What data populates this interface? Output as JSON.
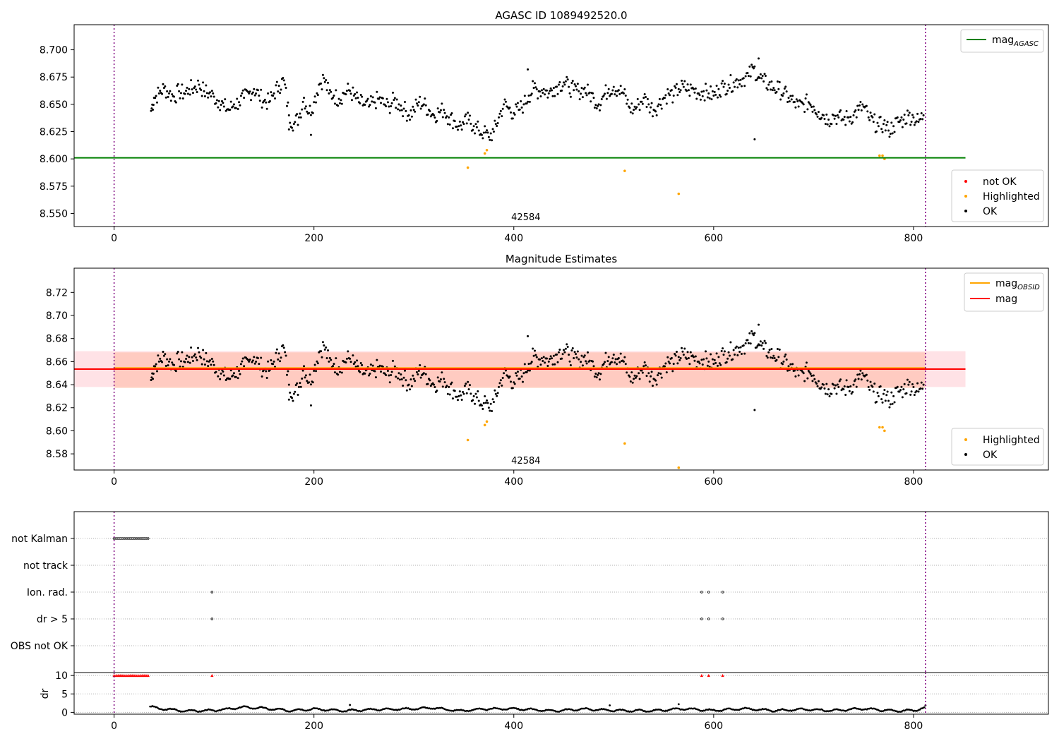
{
  "chart_data": [
    {
      "type": "scatter",
      "title": "AGASC ID 1089492520.0",
      "x_ticks": [
        0,
        200,
        400,
        600,
        800
      ],
      "y_ticks": [
        8.55,
        8.575,
        8.6,
        8.625,
        8.65,
        8.675,
        8.7
      ],
      "y_tick_labels": [
        "8.550",
        "8.575",
        "8.600",
        "8.625",
        "8.650",
        "8.675",
        "8.700"
      ],
      "xlim": [
        -40,
        935
      ],
      "ylim": [
        8.538,
        8.723
      ],
      "vlines": [
        0,
        812
      ],
      "obsid_label": {
        "text": "42584",
        "x": 405
      },
      "hlines": [
        {
          "name": "mag_AGASC",
          "y": 8.601,
          "x_range": [
            -40,
            852
          ],
          "color": "#008000"
        }
      ],
      "legend_top": {
        "position": "top-right",
        "entries": [
          {
            "base": "mag",
            "sub": "AGASC",
            "color": "#008000"
          }
        ]
      },
      "legend_bottom": {
        "position": "lower-right",
        "entries": [
          {
            "label": "not OK",
            "color": "#ff0000"
          },
          {
            "label": "Highlighted",
            "color": "#ffa500"
          },
          {
            "label": "OK",
            "color": "#000000"
          }
        ]
      },
      "series": [
        {
          "name": "OK",
          "color": "#000000",
          "points": [
            [
              37,
              8.644
            ],
            [
              40,
              8.656
            ],
            [
              45,
              8.66
            ],
            [
              50,
              8.665
            ],
            [
              55,
              8.66
            ],
            [
              60,
              8.657
            ],
            [
              65,
              8.662
            ],
            [
              70,
              8.66
            ],
            [
              75,
              8.664
            ],
            [
              80,
              8.665
            ],
            [
              85,
              8.668
            ],
            [
              90,
              8.662
            ],
            [
              95,
              8.66
            ],
            [
              100,
              8.657
            ],
            [
              105,
              8.653
            ],
            [
              110,
              8.648
            ],
            [
              115,
              8.645
            ],
            [
              120,
              8.65
            ],
            [
              125,
              8.652
            ],
            [
              130,
              8.656
            ],
            [
              135,
              8.66
            ],
            [
              140,
              8.664
            ],
            [
              145,
              8.658
            ],
            [
              150,
              8.653
            ],
            [
              155,
              8.652
            ],
            [
              160,
              8.66
            ],
            [
              165,
              8.667
            ],
            [
              170,
              8.672
            ],
            [
              175,
              8.64
            ],
            [
              180,
              8.632
            ],
            [
              185,
              8.638
            ],
            [
              190,
              8.656
            ],
            [
              195,
              8.642
            ],
            [
              200,
              8.652
            ],
            [
              205,
              8.668
            ],
            [
              210,
              8.674
            ],
            [
              215,
              8.66
            ],
            [
              220,
              8.658
            ],
            [
              225,
              8.655
            ],
            [
              230,
              8.66
            ],
            [
              235,
              8.663
            ],
            [
              240,
              8.658
            ],
            [
              245,
              8.652
            ],
            [
              250,
              8.65
            ],
            [
              255,
              8.648
            ],
            [
              260,
              8.652
            ],
            [
              265,
              8.655
            ],
            [
              270,
              8.65
            ],
            [
              275,
              8.648
            ],
            [
              280,
              8.654
            ],
            [
              285,
              8.65
            ],
            [
              290,
              8.646
            ],
            [
              295,
              8.64
            ],
            [
              300,
              8.645
            ],
            [
              305,
              8.652
            ],
            [
              310,
              8.65
            ],
            [
              315,
              8.645
            ],
            [
              320,
              8.64
            ],
            [
              325,
              8.643
            ],
            [
              330,
              8.645
            ],
            [
              335,
              8.638
            ],
            [
              340,
              8.635
            ],
            [
              345,
              8.63
            ],
            [
              350,
              8.632
            ],
            [
              355,
              8.636
            ],
            [
              360,
              8.63
            ],
            [
              365,
              8.626
            ],
            [
              370,
              8.624
            ],
            [
              375,
              8.62
            ],
            [
              380,
              8.625
            ],
            [
              385,
              8.638
            ],
            [
              390,
              8.65
            ],
            [
              395,
              8.646
            ],
            [
              400,
              8.642
            ],
            [
              405,
              8.645
            ],
            [
              410,
              8.65
            ],
            [
              415,
              8.658
            ],
            [
              420,
              8.665
            ],
            [
              425,
              8.662
            ],
            [
              430,
              8.664
            ],
            [
              435,
              8.66
            ],
            [
              440,
              8.665
            ],
            [
              445,
              8.668
            ],
            [
              450,
              8.67
            ],
            [
              455,
              8.666
            ],
            [
              460,
              8.663
            ],
            [
              465,
              8.662
            ],
            [
              470,
              8.664
            ],
            [
              475,
              8.66
            ],
            [
              480,
              8.656
            ],
            [
              485,
              8.65
            ],
            [
              490,
              8.658
            ],
            [
              495,
              8.664
            ],
            [
              500,
              8.666
            ],
            [
              505,
              8.663
            ],
            [
              510,
              8.66
            ],
            [
              515,
              8.648
            ],
            [
              520,
              8.645
            ],
            [
              525,
              8.65
            ],
            [
              530,
              8.656
            ],
            [
              535,
              8.65
            ],
            [
              540,
              8.645
            ],
            [
              545,
              8.65
            ],
            [
              550,
              8.656
            ],
            [
              555,
              8.66
            ],
            [
              560,
              8.658
            ],
            [
              565,
              8.664
            ],
            [
              570,
              8.666
            ],
            [
              575,
              8.663
            ],
            [
              580,
              8.664
            ],
            [
              585,
              8.66
            ],
            [
              590,
              8.662
            ],
            [
              595,
              8.66
            ],
            [
              600,
              8.658
            ],
            [
              605,
              8.664
            ],
            [
              610,
              8.666
            ],
            [
              615,
              8.668
            ],
            [
              620,
              8.67
            ],
            [
              625,
              8.672
            ],
            [
              630,
              8.674
            ],
            [
              635,
              8.676
            ],
            [
              640,
              8.683
            ],
            [
              645,
              8.675
            ],
            [
              650,
              8.671
            ],
            [
              655,
              8.668
            ],
            [
              660,
              8.665
            ],
            [
              665,
              8.664
            ],
            [
              670,
              8.66
            ],
            [
              675,
              8.656
            ],
            [
              680,
              8.652
            ],
            [
              685,
              8.648
            ],
            [
              690,
              8.65
            ],
            [
              695,
              8.652
            ],
            [
              700,
              8.648
            ],
            [
              705,
              8.643
            ],
            [
              710,
              8.64
            ],
            [
              715,
              8.636
            ],
            [
              720,
              8.64
            ],
            [
              725,
              8.638
            ],
            [
              730,
              8.636
            ],
            [
              735,
              8.638
            ],
            [
              740,
              8.64
            ],
            [
              745,
              8.645
            ],
            [
              750,
              8.648
            ],
            [
              755,
              8.638
            ],
            [
              760,
              8.634
            ],
            [
              765,
              8.63
            ],
            [
              770,
              8.632
            ],
            [
              775,
              8.626
            ],
            [
              780,
              8.63
            ],
            [
              785,
              8.634
            ],
            [
              790,
              8.636
            ],
            [
              795,
              8.64
            ],
            [
              800,
              8.638
            ],
            [
              805,
              8.634
            ],
            [
              810,
              8.64
            ],
            [
              641,
              8.618
            ],
            [
              175,
              8.627
            ],
            [
              197,
              8.622
            ],
            [
              645,
              8.692
            ],
            [
              414,
              8.682
            ]
          ]
        },
        {
          "name": "Highlighted",
          "color": "#ffa500",
          "points": [
            [
              354,
              8.592
            ],
            [
              371,
              8.605
            ],
            [
              373,
              8.608
            ],
            [
              511,
              8.589
            ],
            [
              565,
              8.568
            ],
            [
              766,
              8.603
            ],
            [
              769,
              8.603
            ],
            [
              771,
              8.6
            ]
          ]
        },
        {
          "name": "not OK",
          "color": "#ff0000",
          "points": []
        }
      ]
    },
    {
      "type": "scatter",
      "title": "Magnitude Estimates",
      "x_ticks": [
        0,
        200,
        400,
        600,
        800
      ],
      "y_ticks": [
        8.58,
        8.6,
        8.62,
        8.64,
        8.66,
        8.68,
        8.7,
        8.72
      ],
      "y_tick_labels": [
        "8.58",
        "8.60",
        "8.62",
        "8.64",
        "8.66",
        "8.68",
        "8.70",
        "8.72"
      ],
      "xlim": [
        -40,
        935
      ],
      "ylim": [
        8.566,
        8.741
      ],
      "vlines": [
        0,
        812
      ],
      "obsid_label": {
        "text": "42584",
        "x": 405
      },
      "hlines": [
        {
          "name": "mag_OBSID",
          "y": 8.6545,
          "x_range": [
            0,
            812
          ],
          "color": "#ffa500"
        },
        {
          "name": "mag",
          "y": 8.6535,
          "x_range": [
            -40,
            852
          ],
          "color": "#ff0000"
        }
      ],
      "bands": [
        {
          "y_range": [
            8.638,
            8.669
          ],
          "x_range": [
            -40,
            852
          ],
          "color": "#ffb6c1",
          "opacity": 0.4
        },
        {
          "y_range": [
            8.637,
            8.668
          ],
          "x_range": [
            0,
            812
          ],
          "color": "#ffa07a",
          "opacity": 0.35
        }
      ],
      "legend_top": {
        "position": "top-right",
        "entries": [
          {
            "base": "mag",
            "sub": "OBSID",
            "color": "#ffa500"
          },
          {
            "base": "mag",
            "sub": "",
            "color": "#ff0000"
          }
        ]
      },
      "legend_bottom": {
        "position": "lower-right",
        "entries": [
          {
            "label": "Highlighted",
            "color": "#ffa500"
          },
          {
            "label": "OK",
            "color": "#000000"
          }
        ]
      },
      "series": [
        {
          "name": "OK",
          "color": "#000000",
          "same_as_panel": 0
        },
        {
          "name": "Highlighted",
          "color": "#ffa500",
          "same_as_panel": 0
        }
      ]
    },
    {
      "type": "scatter",
      "title": "",
      "x_ticks": [
        0,
        200,
        400,
        600,
        800
      ],
      "xlim": [
        -40,
        935
      ],
      "vlines": [
        0,
        812
      ],
      "flag_rows": [
        "not Kalman",
        "not track",
        "Ion. rad.",
        "dr > 5",
        "OBS not OK"
      ],
      "flag_points": {
        "not Kalman": {
          "range": [
            0,
            34
          ],
          "step": 2
        },
        "not track": {
          "points": []
        },
        "Ion. rad.": {
          "points": [
            98,
            588,
            595,
            609
          ]
        },
        "dr > 5": {
          "points": [
            98,
            588,
            595,
            609
          ]
        },
        "OBS not OK": {
          "points": []
        }
      },
      "dr_ylabel": "dr",
      "dr_ticks": [
        0,
        5,
        10
      ],
      "dr_ylim": [
        -0.5,
        10.8
      ],
      "dr_capped_x": {
        "range": [
          0,
          34
        ],
        "step": 2,
        "extra": [
          98,
          588,
          595,
          609
        ]
      },
      "dr_profile": [
        [
          36,
          1.6
        ],
        [
          45,
          1.0
        ],
        [
          55,
          0.8
        ],
        [
          70,
          0.4
        ],
        [
          100,
          0.5
        ],
        [
          130,
          1.4
        ],
        [
          150,
          1.1
        ],
        [
          175,
          0.5
        ],
        [
          200,
          0.9
        ],
        [
          230,
          0.4
        ],
        [
          260,
          0.8
        ],
        [
          290,
          0.9
        ],
        [
          320,
          1.2
        ],
        [
          345,
          0.4
        ],
        [
          370,
          0.9
        ],
        [
          400,
          1.0
        ],
        [
          440,
          0.4
        ],
        [
          470,
          0.9
        ],
        [
          500,
          0.5
        ],
        [
          540,
          0.4
        ],
        [
          570,
          1.0
        ],
        [
          600,
          0.5
        ],
        [
          630,
          1.0
        ],
        [
          660,
          0.5
        ],
        [
          690,
          0.8
        ],
        [
          720,
          0.5
        ],
        [
          750,
          1.0
        ],
        [
          780,
          0.4
        ],
        [
          800,
          0.5
        ],
        [
          812,
          1.3
        ]
      ],
      "dr_outliers": [
        [
          236,
          2.0
        ],
        [
          496,
          1.9
        ],
        [
          565,
          2.2
        ],
        [
          812,
          1.9
        ]
      ]
    }
  ]
}
